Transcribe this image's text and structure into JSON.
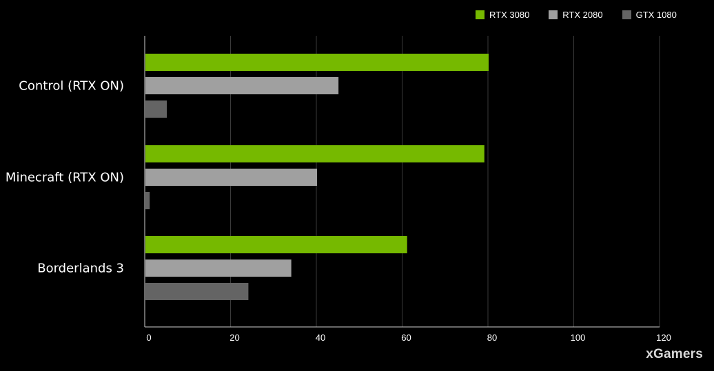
{
  "chart_data": {
    "type": "bar",
    "orientation": "horizontal",
    "categories": [
      "Control (RTX ON)",
      "Minecraft (RTX ON)",
      "Borderlands 3"
    ],
    "series": [
      {
        "name": "RTX 3080",
        "color": "#76b900",
        "values": [
          80,
          79,
          61
        ]
      },
      {
        "name": "RTX 2080",
        "color": "#a0a0a0",
        "values": [
          45,
          40,
          34
        ]
      },
      {
        "name": "GTX 1080",
        "color": "#646464",
        "values": [
          5,
          1,
          24
        ]
      }
    ],
    "x_ticks": [
      "0",
      "20",
      "40",
      "60",
      "80",
      "100",
      "120"
    ],
    "xlim": [
      0,
      120
    ],
    "grid": "vertical",
    "legend_position": "top-right",
    "title": "",
    "xlabel": "",
    "ylabel": ""
  },
  "watermark": "xGamers"
}
